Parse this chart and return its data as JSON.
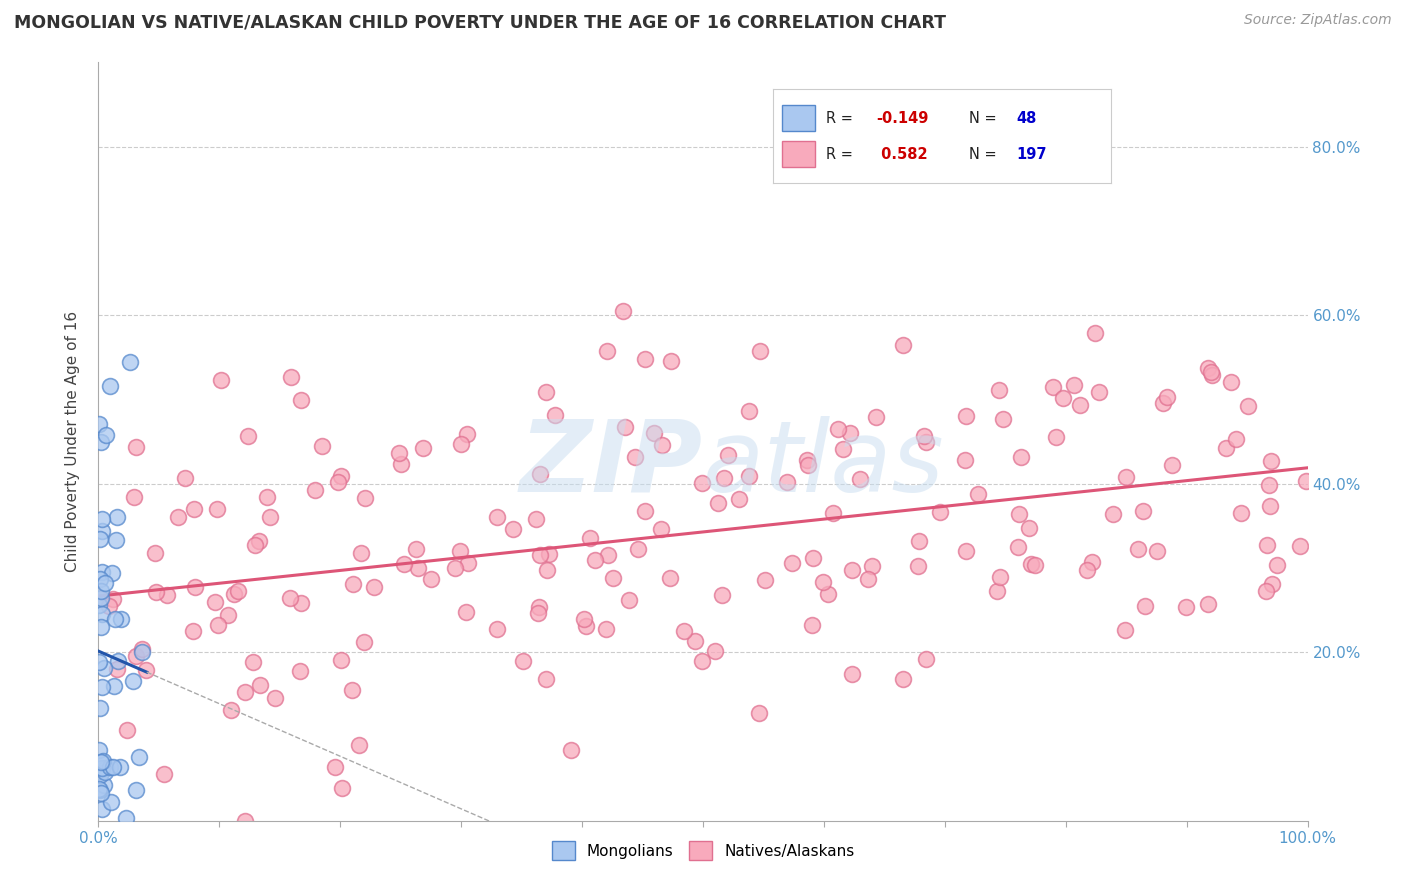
{
  "title": "MONGOLIAN VS NATIVE/ALASKAN CHILD POVERTY UNDER THE AGE OF 16 CORRELATION CHART",
  "source": "Source: ZipAtlas.com",
  "ylabel": "Child Poverty Under the Age of 16",
  "xlim": [
    0,
    100
  ],
  "ylim": [
    0,
    90
  ],
  "mongolian_R": -0.149,
  "mongolian_N": 48,
  "native_R": 0.582,
  "native_N": 197,
  "mongolian_color": "#aac8f0",
  "mongolian_edge_color": "#5588cc",
  "mongolian_line_color": "#2255aa",
  "native_color": "#f8aabc",
  "native_edge_color": "#e07090",
  "native_line_color": "#dd5577",
  "background_color": "#ffffff",
  "grid_color": "#cccccc",
  "tick_color": "#5599cc",
  "title_color": "#333333",
  "source_color": "#999999",
  "watermark_color": "#c8ddf0",
  "watermark_alpha": 0.5
}
